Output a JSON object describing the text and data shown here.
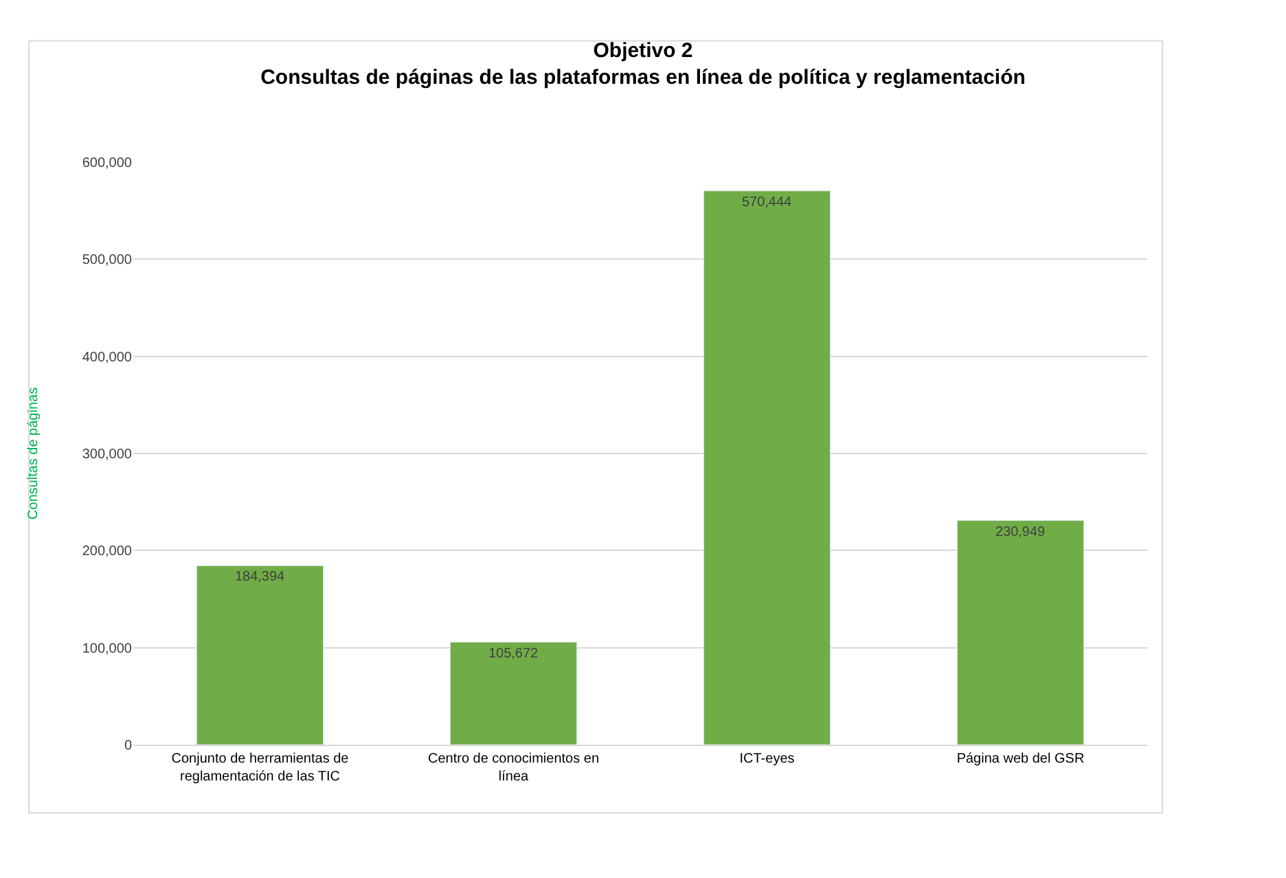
{
  "chart_data": {
    "type": "bar",
    "title": "Objetivo 2",
    "subtitle": "Consultas de páginas de las plataformas en línea de política y reglamentación",
    "ylabel": "Consultas de páginas",
    "categories": [
      "Conjunto de herramientas de reglamentación de las TIC",
      "Centro de conocimientos en línea",
      "ICT-eyes",
      "Página web del GSR"
    ],
    "values": [
      184394,
      105672,
      570444,
      230949
    ],
    "color": "#70ad47",
    "ylim": [
      0,
      600000
    ],
    "yticks": [
      {
        "value": 0,
        "label": "0"
      },
      {
        "value": 100000,
        "label": "100,000"
      },
      {
        "value": 200000,
        "label": "200,000"
      },
      {
        "value": 300000,
        "label": "300,000"
      },
      {
        "value": 400000,
        "label": "400,000"
      },
      {
        "value": 500000,
        "label": "500,000"
      },
      {
        "value": 600000,
        "label": "600,000"
      }
    ],
    "value_labels": [
      "184,394",
      "105,672",
      "570,444",
      "230,949"
    ],
    "grid": "y"
  }
}
